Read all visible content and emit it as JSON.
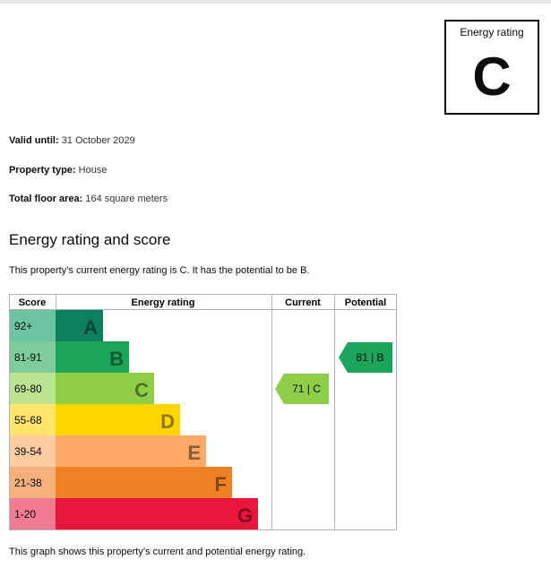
{
  "rating_box": {
    "label": "Energy rating",
    "letter": "C"
  },
  "details": {
    "valid_until_label": "Valid until:",
    "valid_until_value": "31 October 2029",
    "property_type_label": "Property type:",
    "property_type_value": "House",
    "floor_area_label": "Total floor area:",
    "floor_area_value": "164 square meters"
  },
  "section_title": "Energy rating and score",
  "summary": "This property’s current energy rating is C. It has the potential to be B.",
  "footnote": "This graph shows this property’s current and potential energy rating.",
  "chart_data": {
    "type": "table",
    "headers": {
      "score": "Score",
      "rating": "Energy rating",
      "current": "Current",
      "potential": "Potential"
    },
    "bands": [
      {
        "range": "92+",
        "letter": "A",
        "color": "#0c7f5f",
        "light": "#6cc3a1",
        "width_fraction": 0.22
      },
      {
        "range": "81-91",
        "letter": "B",
        "color": "#1aa55a",
        "light": "#7ecc99",
        "width_fraction": 0.34
      },
      {
        "range": "69-80",
        "letter": "C",
        "color": "#8dce46",
        "light": "#bde492",
        "width_fraction": 0.46
      },
      {
        "range": "55-68",
        "letter": "D",
        "color": "#ffd500",
        "light": "#ffe66b",
        "width_fraction": 0.58
      },
      {
        "range": "39-54",
        "letter": "E",
        "color": "#fcaa65",
        "light": "#fdcca2",
        "width_fraction": 0.7
      },
      {
        "range": "21-38",
        "letter": "F",
        "color": "#ef8023",
        "light": "#f5b07c",
        "width_fraction": 0.82
      },
      {
        "range": "1-20",
        "letter": "G",
        "color": "#e9153b",
        "light": "#f17b90",
        "width_fraction": 0.94
      }
    ],
    "current": {
      "score": 71,
      "letter": "C",
      "label": "71 | C",
      "color": "#8dce46"
    },
    "potential": {
      "score": 81,
      "letter": "B",
      "label": "81 | B",
      "color": "#1aa55a"
    }
  }
}
